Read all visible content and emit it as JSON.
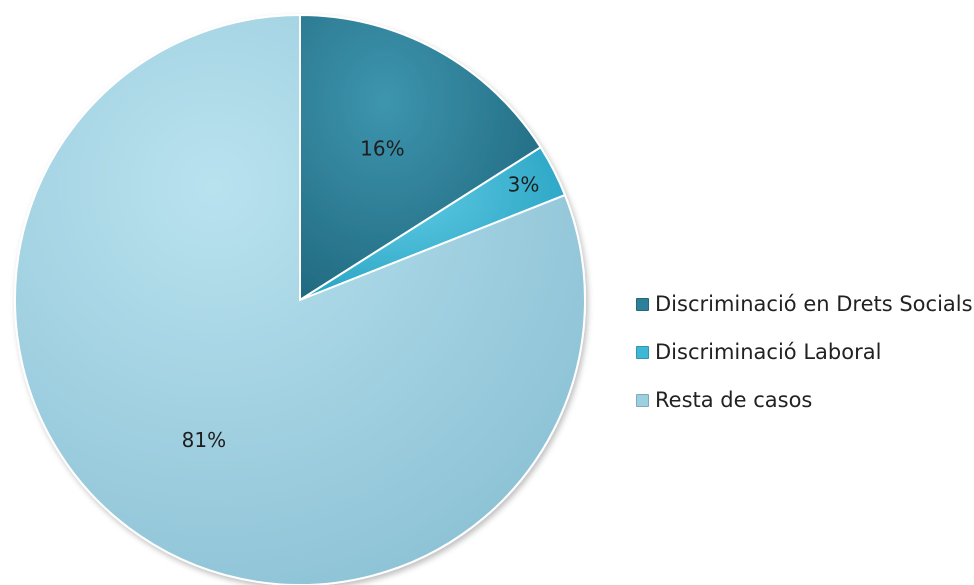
{
  "chart_data": {
    "type": "pie",
    "title": "",
    "slices": [
      {
        "label": "Discriminació en Drets Socials",
        "value": 16,
        "display": "16%",
        "color": "#2e7f98"
      },
      {
        "label": "Discriminació Laboral",
        "value": 3,
        "display": "3%",
        "color": "#3fb8d6"
      },
      {
        "label": "Resta de casos",
        "value": 81,
        "display": "81%",
        "color": "#9cd0e1"
      }
    ],
    "legend_position": "right",
    "start_angle": "12 o'clock",
    "direction": "clockwise"
  }
}
